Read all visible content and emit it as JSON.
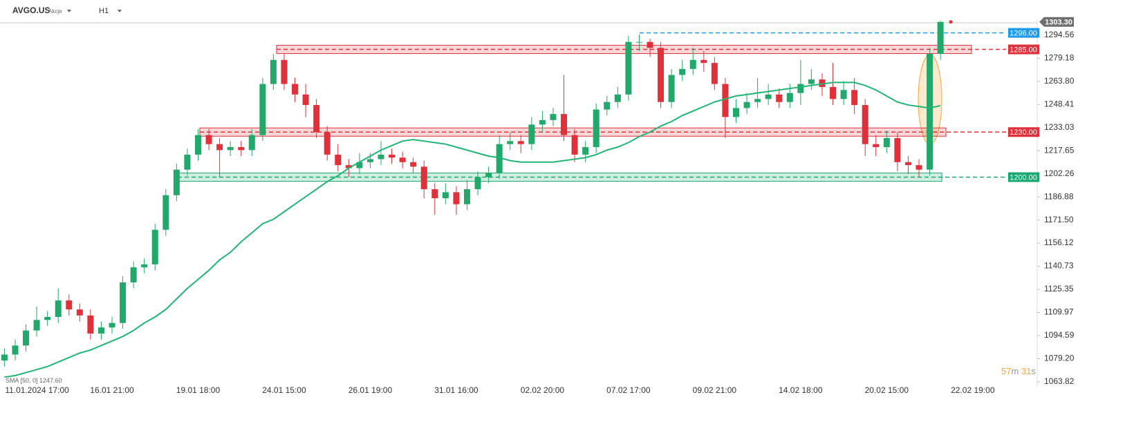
{
  "header": {
    "symbol": "AVGO.US",
    "asset_type": "Akcje",
    "interval": "H1"
  },
  "countdown": [
    "57",
    "m",
    "31",
    "s"
  ],
  "chart_data": {
    "type": "candlestick",
    "categories": [
      null,
      null,
      "11.01.2024 17:00",
      null,
      null,
      null,
      null,
      null,
      null,
      null,
      "16.01 21:00",
      null,
      null,
      null,
      null,
      null,
      null,
      null,
      "19.01 18:00",
      null,
      null,
      null,
      null,
      null,
      null,
      null,
      "24.01 15:00",
      null,
      null,
      null,
      null,
      null,
      null,
      null,
      "26.01 19:00",
      null,
      null,
      null,
      null,
      null,
      null,
      null,
      "31.01 16:00",
      null,
      null,
      null,
      null,
      null,
      null,
      null,
      "02.02 20:00",
      null,
      null,
      null,
      null,
      null,
      null,
      null,
      "07.02 17:00",
      null,
      null,
      null,
      null,
      null,
      null,
      null,
      "09.02 21:00",
      null,
      null,
      null,
      null,
      null,
      null,
      null,
      "14.02 18:00",
      null,
      null,
      null,
      null,
      null,
      null,
      null,
      "20.02 15:00",
      null,
      null,
      null,
      null,
      null,
      null,
      null,
      "22.02 19:00"
    ],
    "open": [
      1078,
      1082,
      1088,
      1098,
      1105,
      1107,
      1118,
      1112,
      1108,
      1096,
      1100,
      1103,
      1130,
      1140,
      1142,
      1165,
      1188,
      1205,
      1215,
      1228,
      1222,
      1218,
      1220,
      1218,
      1228,
      1262,
      1278,
      1262,
      1255,
      1248,
      1230,
      1215,
      1208,
      1206,
      1210,
      1212,
      1215,
      1213,
      1210,
      1207,
      1192,
      1186,
      1190,
      1182,
      1192,
      1200,
      1203,
      1222,
      1224,
      1222,
      1235,
      1238,
      1242,
      1228,
      1215,
      1220,
      1245,
      1250,
      1255,
      1290,
      1290,
      1286,
      1250,
      1268,
      1272,
      1278,
      1276,
      1262,
      1240,
      1246,
      1250,
      1252,
      1255,
      1250,
      1256,
      1262,
      1265,
      1260,
      1252,
      1258,
      1248,
      1222,
      1220,
      1226,
      1210,
      1208,
      1205,
      1282,
      null,
      null,
      null
    ],
    "high": [
      1086,
      1092,
      1102,
      1114,
      1111,
      1126,
      1122,
      1116,
      1112,
      1104,
      1107,
      1134,
      1144,
      1146,
      1169,
      1192,
      1209,
      1219,
      1232,
      1232,
      1226,
      1224,
      1224,
      1232,
      1266,
      1282,
      1282,
      1266,
      1262,
      1252,
      1234,
      1222,
      1212,
      1216,
      1216,
      1224,
      1219,
      1217,
      1213,
      1211,
      1196,
      1196,
      1194,
      1198,
      1204,
      1207,
      1228,
      1230,
      1228,
      1240,
      1244,
      1246,
      1268,
      1232,
      1224,
      1249,
      1254,
      1260,
      1294,
      1295,
      1292,
      1290,
      1272,
      1278,
      1286,
      1284,
      1280,
      1266,
      1252,
      1256,
      1266,
      1262,
      1259,
      1262,
      1278,
      1272,
      1269,
      1276,
      1264,
      1266,
      1252,
      1228,
      1231,
      1230,
      1214,
      1212,
      1286,
      1304,
      null,
      null,
      null
    ],
    "low": [
      1074,
      1078,
      1084,
      1094,
      1101,
      1103,
      1108,
      1104,
      1092,
      1092,
      1096,
      1099,
      1126,
      1136,
      1138,
      1161,
      1184,
      1201,
      1211,
      1218,
      1200,
      1214,
      1214,
      1214,
      1224,
      1258,
      1258,
      1250,
      1240,
      1226,
      1211,
      1204,
      1200,
      1202,
      1206,
      1208,
      1209,
      1206,
      1203,
      1186,
      1175,
      1182,
      1175,
      1178,
      1188,
      1196,
      1199,
      1218,
      1216,
      1218,
      1230,
      1234,
      1224,
      1210,
      1210,
      1216,
      1241,
      1246,
      1251,
      1284,
      1280,
      1246,
      1246,
      1264,
      1268,
      1270,
      1258,
      1226,
      1236,
      1242,
      1246,
      1248,
      1246,
      1246,
      1248,
      1258,
      1254,
      1248,
      1248,
      1242,
      1214,
      1214,
      1216,
      1204,
      1202,
      1200,
      1201,
      1278,
      null,
      null,
      null
    ],
    "close": [
      1082,
      1088,
      1098,
      1105,
      1107,
      1118,
      1112,
      1108,
      1096,
      1100,
      1103,
      1130,
      1140,
      1142,
      1165,
      1188,
      1205,
      1215,
      1228,
      1222,
      1218,
      1220,
      1218,
      1228,
      1262,
      1278,
      1262,
      1255,
      1248,
      1230,
      1215,
      1208,
      1206,
      1210,
      1212,
      1215,
      1213,
      1210,
      1207,
      1192,
      1186,
      1190,
      1182,
      1192,
      1200,
      1203,
      1222,
      1224,
      1222,
      1235,
      1238,
      1242,
      1228,
      1215,
      1220,
      1245,
      1250,
      1255,
      1290,
      1290,
      1286,
      1250,
      1268,
      1272,
      1278,
      1276,
      1262,
      1240,
      1246,
      1250,
      1252,
      1255,
      1250,
      1256,
      1262,
      1265,
      1260,
      1252,
      1258,
      1248,
      1222,
      1220,
      1226,
      1210,
      1208,
      1205,
      1282,
      1303.3,
      null,
      null,
      null
    ],
    "up_color": "#22a86a",
    "down_color": "#e0313b",
    "sma": {
      "name": "SMA [50, 0]",
      "label": "1247.60",
      "color": "#1fb574",
      "values": [
        1067,
        1068,
        1070,
        1072,
        1074,
        1077,
        1080,
        1083,
        1085,
        1088,
        1091,
        1094,
        1098,
        1103,
        1107,
        1112,
        1119,
        1126,
        1132,
        1138,
        1145,
        1150,
        1157,
        1163,
        1169,
        1172,
        1177,
        1182,
        1187,
        1192,
        1197,
        1201,
        1206,
        1210,
        1214,
        1218,
        1221,
        1224,
        1225,
        1224,
        1223,
        1222,
        1220,
        1218,
        1216,
        1214,
        1213,
        1211,
        1210,
        1210,
        1210,
        1210,
        1211,
        1212,
        1213,
        1215,
        1218,
        1220,
        1223,
        1227,
        1230,
        1234,
        1237,
        1241,
        1244,
        1247,
        1250,
        1252,
        1254,
        1255,
        1256,
        1257,
        1258,
        1259,
        1260,
        1261,
        1262,
        1263,
        1263,
        1263,
        1261,
        1258,
        1254,
        1250,
        1248,
        1247,
        1246,
        1247.6,
        null,
        null,
        null
      ]
    },
    "levels": [
      {
        "value": 1296,
        "label": "1296.00",
        "color": "#1e9be9",
        "zone": false
      },
      {
        "value": 1285,
        "label": "1285.00",
        "color": "#e0313b",
        "zone": true
      },
      {
        "value": 1230,
        "label": "1230.00",
        "color": "#e0313b",
        "zone": true
      },
      {
        "value": 1200,
        "label": "1200.00",
        "color": "#18a870",
        "zone": true
      }
    ],
    "last_price": {
      "value": 1303.3,
      "label": "1303.30"
    },
    "ylim": [
      1060.6,
      1305
    ],
    "yticks": [
      1294.56,
      1279.18,
      {
        "value": 1263.8,
        "label": "1263.80"
      },
      1248.41,
      1233.03,
      1217.65,
      1202.26,
      1186.88,
      {
        "value": 1171.5,
        "label": "1171.50"
      },
      1156.12,
      1140.73,
      1125.35,
      1109.97,
      1094.59,
      {
        "value": 1079.2,
        "label": "1079.20"
      },
      1063.82
    ]
  }
}
